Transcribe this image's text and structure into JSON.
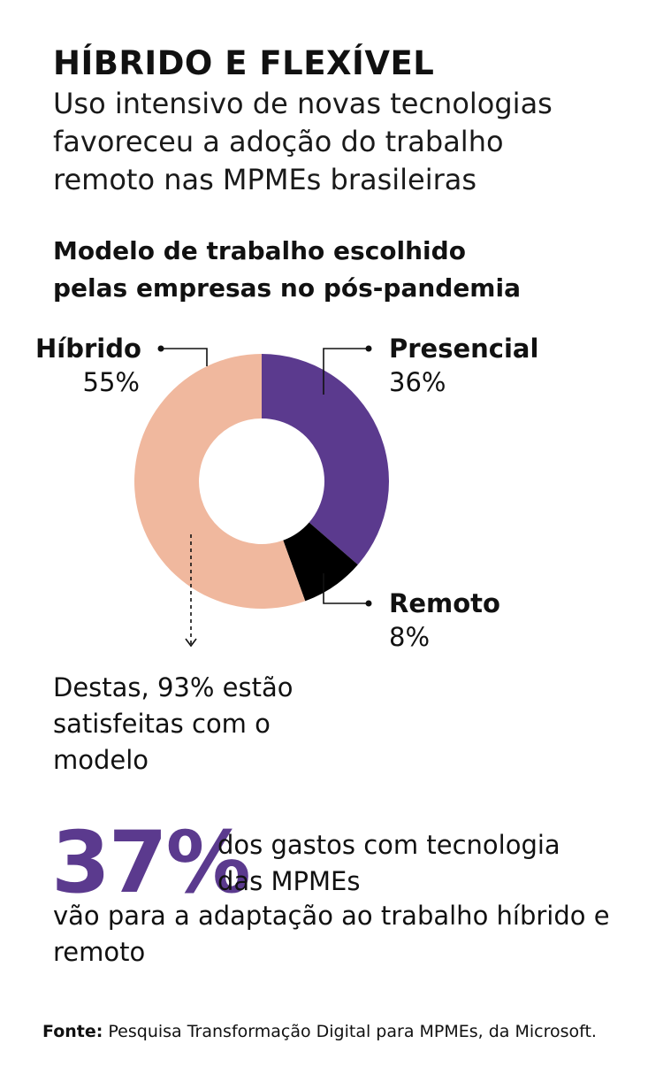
{
  "headline": "HÍBRIDO E FLEXÍVEL",
  "subtitle": "Uso intensivo de novas tecnologias favoreceu a adoção do trabalho remoto nas MPMEs brasileiras",
  "chart_data": {
    "type": "pie",
    "title": "Modelo de trabalho escolhido pelas empresas no pós-pandemia",
    "categories": [
      "Presencial",
      "Remoto",
      "Híbrido"
    ],
    "values": [
      36,
      8,
      55
    ],
    "labels": [
      "36%",
      "8%",
      "55%"
    ],
    "colors": [
      "#5b3a8e",
      "#000000",
      "#f0b89e"
    ],
    "donut": true
  },
  "note": "Destas, 93% estão satisfeitas com o modelo",
  "stat": {
    "value": "37%",
    "text_line1": "dos gastos com tecnologia das MPMEs",
    "text_line2": "vão para a adaptação ao trabalho híbrido e remoto",
    "color": "#5b3a8e"
  },
  "source": {
    "label": "Fonte:",
    "text": "Pesquisa Transformação Digital para MPMEs, da Microsoft."
  }
}
